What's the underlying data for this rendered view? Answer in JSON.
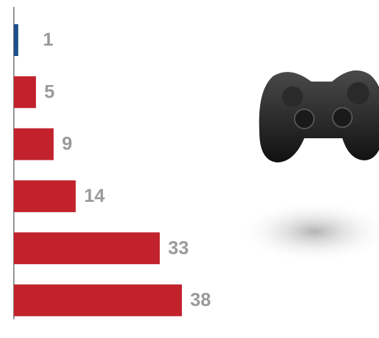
{
  "chart_data": {
    "type": "hbar",
    "categories": [
      null,
      null,
      null,
      null,
      null,
      null
    ],
    "values": [
      1,
      5,
      9,
      14,
      33,
      38
    ],
    "colors": [
      "#1b4f8a",
      "#c1222c",
      "#c1222c",
      "#c1222c",
      "#c1222c",
      "#c1222c"
    ]
  }
}
